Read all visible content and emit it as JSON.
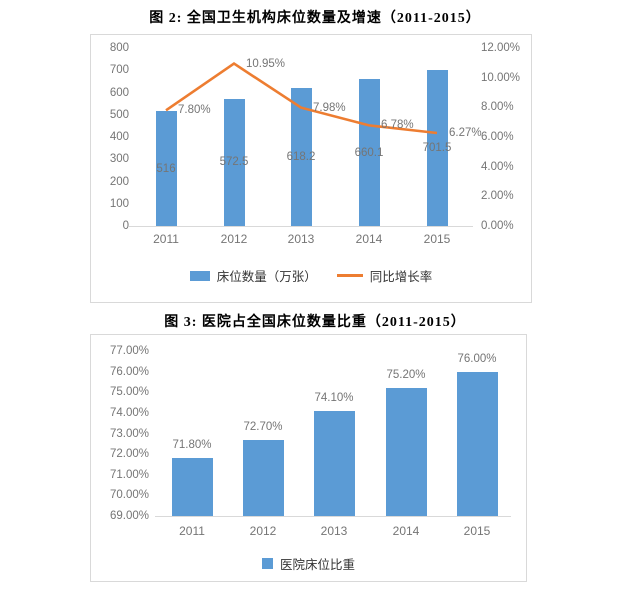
{
  "colors": {
    "bar_blue": "#5B9BD5",
    "line_orange": "#ED7D31",
    "axis_text_gray": "#757575",
    "axis_line_gray": "#d9d9d9"
  },
  "chart_data": [
    {
      "type": "bar",
      "title": "图 2: 全国卫生机构床位数量及增速（2011-2015）",
      "categories": [
        "2011",
        "2012",
        "2013",
        "2014",
        "2015"
      ],
      "series": [
        {
          "name": "床位数量（万张）",
          "type": "bar",
          "values": [
            516,
            572.5,
            618.2,
            660.1,
            701.5
          ],
          "labels": [
            "516",
            "572.5",
            "618.2",
            "660.1",
            "701.5"
          ],
          "color": "#5B9BD5"
        },
        {
          "name": "同比增长率",
          "type": "line",
          "values": [
            7.8,
            10.95,
            7.98,
            6.78,
            6.27
          ],
          "labels": [
            "7.80%",
            "10.95%",
            "7.98%",
            "6.78%",
            "6.27%"
          ],
          "color": "#ED7D31"
        }
      ],
      "left_axis": {
        "min": 0,
        "max": 800,
        "step": 100,
        "ticks": [
          "800",
          "700",
          "600",
          "500",
          "400",
          "300",
          "200",
          "100",
          "0"
        ]
      },
      "right_axis": {
        "min": 0,
        "max": 12,
        "step": 2,
        "ticks": [
          "12.00%",
          "10.00%",
          "8.00%",
          "6.00%",
          "4.00%",
          "2.00%",
          "0.00%"
        ]
      },
      "legend": [
        "床位数量（万张）",
        "同比增长率"
      ],
      "grid": false,
      "legend_position": "bottom"
    },
    {
      "type": "bar",
      "title": "图 3: 医院占全国床位数量比重（2011-2015）",
      "categories": [
        "2011",
        "2012",
        "2013",
        "2014",
        "2015"
      ],
      "values": [
        71.8,
        72.7,
        74.1,
        75.2,
        76.0
      ],
      "labels": [
        "71.80%",
        "72.70%",
        "74.10%",
        "75.20%",
        "76.00%"
      ],
      "y_axis": {
        "min": 69,
        "max": 77,
        "step": 1,
        "ticks": [
          "77.00%",
          "76.00%",
          "75.00%",
          "74.00%",
          "73.00%",
          "72.00%",
          "71.00%",
          "70.00%",
          "69.00%"
        ]
      },
      "legend": [
        "医院床位比重"
      ],
      "bar_color": "#5B9BD5",
      "grid": false,
      "legend_position": "bottom"
    }
  ]
}
